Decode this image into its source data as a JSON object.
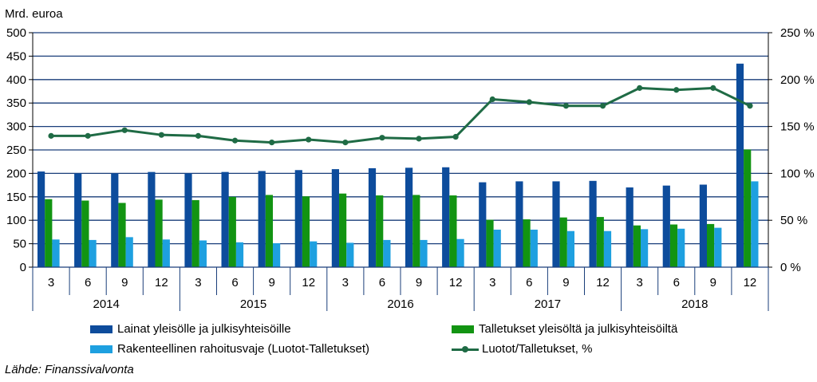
{
  "chart_data": {
    "type": "bar",
    "left_axis_label": "Mrd. euroa",
    "left_axis": {
      "min": 0,
      "max": 500,
      "ticks": [
        "0",
        "50",
        "100",
        "150",
        "200",
        "250",
        "300",
        "350",
        "400",
        "450",
        "500"
      ]
    },
    "right_axis": {
      "min": 0,
      "max": 250,
      "ticks": [
        "0 %",
        "50 %",
        "100 %",
        "150 %",
        "200 %",
        "250 %"
      ]
    },
    "categories": [
      "3",
      "6",
      "9",
      "12",
      "3",
      "6",
      "9",
      "12",
      "3",
      "6",
      "9",
      "12",
      "3",
      "6",
      "9",
      "12",
      "3",
      "6",
      "9",
      "12"
    ],
    "years": [
      "2014",
      "2015",
      "2016",
      "2017",
      "2018"
    ],
    "series": [
      {
        "name": "Lainat yleisölle ja julkisyhteisöille",
        "type": "bar",
        "color": "#0d4c9c",
        "values": [
          204,
          200,
          200,
          203,
          200,
          203,
          205,
          207,
          209,
          211,
          212,
          213,
          181,
          183,
          183,
          184,
          170,
          174,
          176,
          434
        ]
      },
      {
        "name": "Talletukset yleisöltä ja julkisyhteisöiltä",
        "type": "bar",
        "color": "#129412",
        "values": [
          145,
          142,
          137,
          144,
          143,
          150,
          154,
          151,
          157,
          153,
          154,
          153,
          101,
          102,
          106,
          107,
          89,
          91,
          92,
          251
        ]
      },
      {
        "name": "Rakenteellinen rahoitusvaje (Luotot-Talletukset)",
        "type": "bar",
        "color": "#1ea0e0",
        "values": [
          59,
          58,
          64,
          59,
          57,
          53,
          51,
          55,
          52,
          58,
          58,
          60,
          80,
          80,
          77,
          77,
          81,
          82,
          84,
          183
        ]
      },
      {
        "name": "Luotot/Talletukset, %",
        "type": "line",
        "axis": "right",
        "color": "#1f6b45",
        "values": [
          140,
          140,
          146,
          141,
          140,
          135,
          133,
          136,
          133,
          138,
          137,
          139,
          179,
          176,
          172,
          172,
          191,
          189,
          191,
          172
        ]
      }
    ],
    "grid": true,
    "legend_position": "bottom"
  },
  "source": "Lähde: Finanssivalvonta"
}
